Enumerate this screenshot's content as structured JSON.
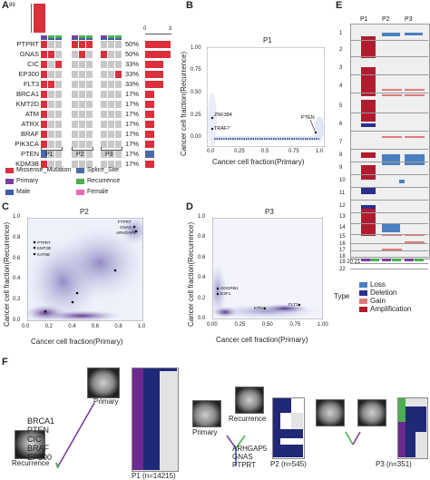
{
  "panels": {
    "A": "A",
    "B": "B",
    "C": "C",
    "D": "D",
    "E": "E",
    "F": "F"
  },
  "panelA": {
    "top_axis_value": "89",
    "freq_axis_min": "0",
    "freq_axis_max": "3",
    "genes": [
      "PTPRT",
      "GNAS",
      "CIC",
      "EP300",
      "FLT3",
      "BRCA1",
      "KMT2D",
      "ATM",
      "ATRX",
      "BRAF",
      "PIK3CA",
      "PTEN",
      "KDM3B"
    ],
    "percents": [
      "50%",
      "50%",
      "33%",
      "33%",
      "33%",
      "17%",
      "17%",
      "17%",
      "17%",
      "17%",
      "17%",
      "17%",
      "17%"
    ],
    "patients": [
      "P1",
      "P2",
      "P3"
    ],
    "legend": {
      "missense": "Missense_Mutation",
      "splice": "Splice_Site",
      "primary": "Primary",
      "recurrence": "Recurrence",
      "male": "Male",
      "female": "Female"
    },
    "colors": {
      "missense": "#d9303c",
      "splice": "#4a69a8",
      "primary": "#7b3f9e",
      "recurrence": "#4caf50",
      "male": "#3b5ea8",
      "female": "#e86bb8",
      "nomut": "#c8c8c8"
    }
  },
  "panelB": {
    "title": "P1",
    "xlabel": "Cancer cell fraction(Primary)",
    "ylabel": "Cancer cell fraction(Recurrence)",
    "xticks": [
      "0.0",
      "0.25",
      "0.5",
      "0.75",
      "1.0"
    ],
    "yticks": [
      "0.00",
      "0.25",
      "0.50",
      "0.75",
      "1.00"
    ],
    "labels": [
      "ZNF384",
      "TRAF7",
      "PTEN"
    ]
  },
  "panelC": {
    "title": "P2",
    "xlabel": "Cancer cell fraction(Primary)",
    "ylabel": "Cancer cell fraction(Recurrence)",
    "xticks": [
      "0.0",
      "0.2",
      "0.4",
      "0.6",
      "0.8",
      "1.0"
    ],
    "yticks": [
      "0.0",
      "0.2",
      "0.4",
      "0.6",
      "0.8",
      "1.0"
    ],
    "labels_top": [
      "PTPRT",
      "GNAS",
      "ARHGAP5"
    ],
    "labels_left": [
      "PTPRT",
      "KMT2B",
      "KAT6B"
    ]
  },
  "panelD": {
    "title": "P3",
    "xlabel": "Cancer cell fraction(Primary)",
    "ylabel": "Cancer cell fraction(Recurrence)",
    "xticks": [
      "0.00",
      "0.25",
      "0.50",
      "0.75",
      "1.00"
    ],
    "yticks": [
      "0.0",
      "0.2",
      "0.4",
      "0.6",
      "0.8",
      "1.0"
    ],
    "labels": [
      "ADGRB1",
      "E2F1",
      "KTN1",
      "FLT3"
    ]
  },
  "panelE": {
    "patients": [
      "P1",
      "P2",
      "P3"
    ],
    "chromosomes": [
      "1",
      "2",
      "3",
      "4",
      "5",
      "6",
      "7",
      "8",
      "9",
      "10",
      "11",
      "12",
      "13",
      "14",
      "15",
      "16",
      "17",
      "18",
      "19 20 21",
      "22"
    ],
    "legend_title": "Type",
    "legend": [
      "Loss",
      "Deletion",
      "Gain",
      "Amplification"
    ],
    "colors": {
      "loss": "#4a7fc1",
      "deletion": "#2b2f8f",
      "gain": "#e07a7a",
      "amplification": "#b01c2e"
    }
  },
  "panelF": {
    "p1_primary": "Primary",
    "p1_recurrence": "Recurrence",
    "p1_genes": [
      "BRCA1",
      "PTEN",
      "CIC",
      "BRAF",
      "EP300"
    ],
    "p1_caption": "P1 (n=14215)",
    "p2_primary": "Primary",
    "p2_recurrence": "Recurrence",
    "p2_genes": [
      "ARHGAP5",
      "GNAS",
      "PTPRT"
    ],
    "p2_caption": "P2 (n=545)",
    "p3_caption": "P3 (n=351)"
  }
}
